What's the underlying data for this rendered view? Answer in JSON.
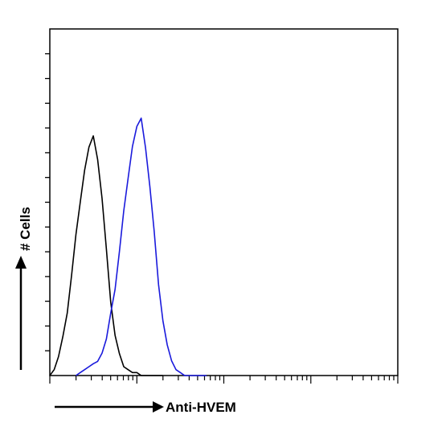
{
  "chart_data": {
    "type": "line",
    "chart_kind": "flow cytometry histogram overlay",
    "xlabel": "Anti-HVEM",
    "ylabel": "# Cells",
    "x_scale": "log",
    "x_range_decades": 4,
    "y_range": [
      0,
      1
    ],
    "grid": false,
    "legend": "none",
    "tick_labels": "none",
    "series": [
      {
        "color": "#000000",
        "style": "isotype control (black outline)",
        "x": [
          0.0,
          0.05,
          0.1,
          0.15,
          0.2,
          0.25,
          0.3,
          0.35,
          0.4,
          0.45,
          0.5,
          0.55,
          0.6,
          0.65,
          0.7,
          0.75,
          0.8,
          0.85,
          0.9,
          0.95,
          1.0,
          1.05,
          1.1,
          1.15,
          1.2,
          1.25,
          1.3
        ],
        "y": [
          0.0,
          0.02,
          0.06,
          0.12,
          0.22,
          0.34,
          0.47,
          0.6,
          0.7,
          0.77,
          0.8,
          0.74,
          0.6,
          0.42,
          0.26,
          0.14,
          0.07,
          0.03,
          0.02,
          0.01,
          0.01,
          0.0,
          0.0,
          0.0,
          0.0,
          0.0,
          0.0
        ]
      },
      {
        "color": "#1a1adc",
        "style": "Anti-HVEM stained (blue outline)",
        "x": [
          0.3,
          0.35,
          0.4,
          0.45,
          0.5,
          0.55,
          0.6,
          0.65,
          0.7,
          0.75,
          0.8,
          0.85,
          0.9,
          0.95,
          1.0,
          1.05,
          1.1,
          1.15,
          1.2,
          1.25,
          1.3,
          1.35,
          1.4,
          1.45,
          1.5,
          1.55,
          1.6,
          1.65,
          1.7,
          1.75,
          1.8
        ],
        "y": [
          0.0,
          0.01,
          0.02,
          0.03,
          0.04,
          0.06,
          0.08,
          0.12,
          0.2,
          0.3,
          0.42,
          0.55,
          0.68,
          0.78,
          0.84,
          0.86,
          0.78,
          0.64,
          0.48,
          0.32,
          0.19,
          0.1,
          0.05,
          0.02,
          0.01,
          0.0,
          0.0,
          0.0,
          0.0,
          0.0,
          0.0
        ]
      }
    ]
  }
}
